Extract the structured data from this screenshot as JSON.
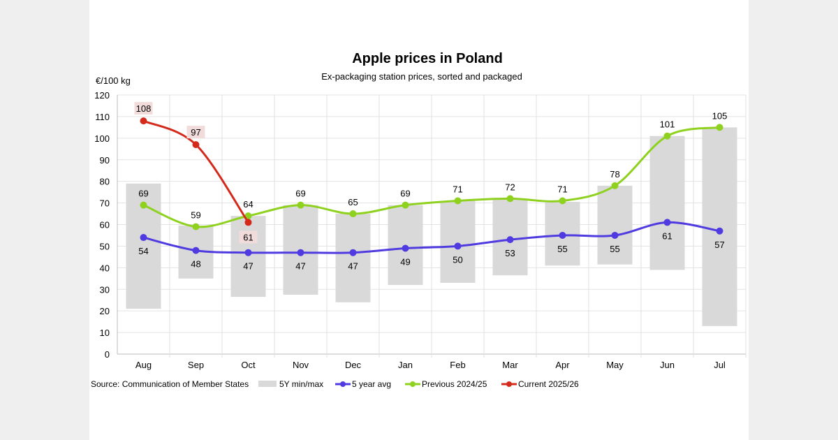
{
  "chart_data": {
    "type": "bar+line",
    "title": "Apple prices in Poland",
    "subtitle": "Ex-packaging station prices, sorted and packaged",
    "ylabel": "€/100 kg",
    "ylim": [
      0,
      120
    ],
    "yticks": [
      0,
      10,
      20,
      30,
      40,
      50,
      60,
      70,
      80,
      90,
      100,
      110,
      120
    ],
    "grid": true,
    "categories": [
      "Aug",
      "Sep",
      "Oct",
      "Nov",
      "Dec",
      "Jan",
      "Feb",
      "Mar",
      "Apr",
      "May",
      "Jun",
      "Jul"
    ],
    "range_series": {
      "name": "5Y min/max",
      "color": "#d9d9d9",
      "min": [
        21,
        35,
        26.5,
        27.5,
        24,
        32,
        33,
        36.5,
        41,
        41.5,
        39,
        13
      ],
      "max": [
        79,
        59.5,
        64,
        69,
        65,
        69,
        71,
        72,
        70.5,
        78,
        101,
        105
      ]
    },
    "series": [
      {
        "name": "5 year avg",
        "color": "#4f3be0",
        "values": [
          54,
          48,
          47,
          47,
          47,
          49,
          50,
          53,
          55,
          55,
          61,
          57
        ],
        "label_position": "below"
      },
      {
        "name": "Previous 2024/25",
        "color": "#8fd11f",
        "values": [
          69,
          59,
          64,
          69,
          65,
          69,
          71,
          72,
          71,
          78,
          101,
          105
        ],
        "label_position": "above"
      },
      {
        "name": "Current 2025/26",
        "color": "#d42a1c",
        "values": [
          108,
          97,
          61,
          null,
          null,
          null,
          null,
          null,
          null,
          null,
          null,
          null
        ],
        "label_position": "boxed"
      }
    ],
    "legend_placement": "bottom",
    "source": "Source: Communication of Member States"
  }
}
